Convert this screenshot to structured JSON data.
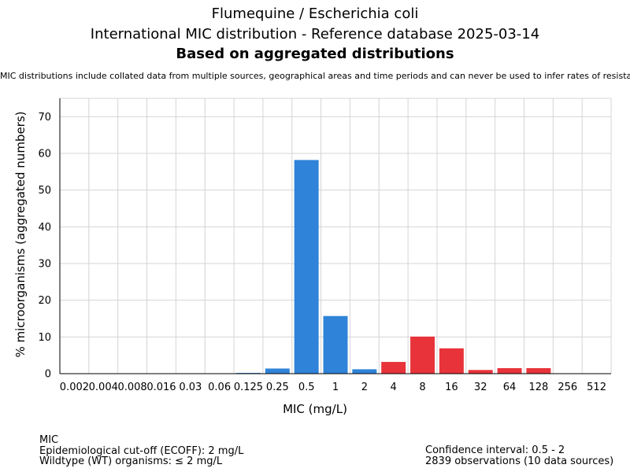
{
  "header": {
    "title_line1": "Flumequine / Escherichia coli",
    "title_line2": "International MIC distribution - Reference database 2025-03-14",
    "title_line3": "Based on aggregated distributions",
    "note": "MIC distributions include collated data from multiple sources, geographical areas and time periods and can never be used to infer rates of resistance"
  },
  "chart_data": {
    "type": "bar",
    "title": "Flumequine / Escherichia coli",
    "xlabel": "MIC (mg/L)",
    "ylabel": "% microorganisms (aggregated numbers)",
    "ylim": [
      0,
      75
    ],
    "yticks": [
      0,
      10,
      20,
      30,
      40,
      50,
      60,
      70
    ],
    "grid": true,
    "categories": [
      "0.002",
      "0.004",
      "0.008",
      "0.016",
      "0.03",
      "0.06",
      "0.125",
      "0.25",
      "0.5",
      "1",
      "2",
      "4",
      "8",
      "16",
      "32",
      "64",
      "128",
      "256",
      "512"
    ],
    "values": [
      0,
      0,
      0,
      0,
      0,
      0,
      0.2,
      1.4,
      58.2,
      15.7,
      1.2,
      3.2,
      10.1,
      6.9,
      1.0,
      1.5,
      1.5,
      0,
      0
    ],
    "bar_colors": {
      "wildtype": "#2f83d8",
      "non_wildtype": "#e8333a"
    },
    "wildtype_max_index": 10
  },
  "footer": {
    "mic_label": "MIC",
    "ecoff": "Epidemiological cut-off (ECOFF): 2 mg/L",
    "wildtype": "Wildtype (WT) organisms: ≤ 2 mg/L",
    "confidence": "Confidence interval: 0.5 - 2",
    "observations": "2839 observations (10 data sources)"
  }
}
